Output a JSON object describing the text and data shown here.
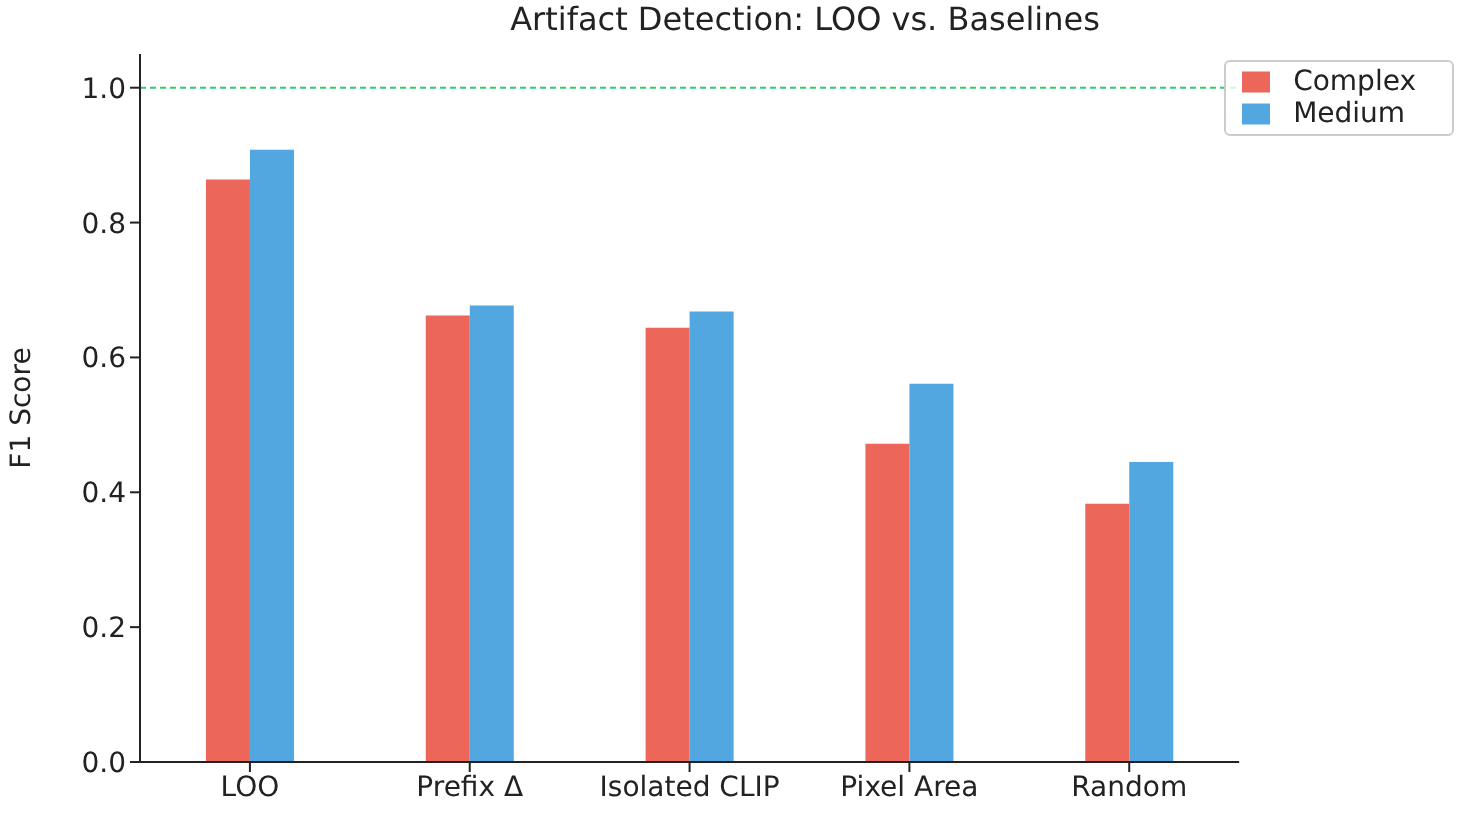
{
  "chart_data": {
    "type": "bar",
    "title": "Artifact Detection: LOO vs. Baselines",
    "ylabel": "F1 Score",
    "categories": [
      "LOO",
      "Prefix Δ",
      "Isolated CLIP",
      "Pixel Area",
      "Random"
    ],
    "series": [
      {
        "name": "Complex",
        "color": "#ec6759",
        "values": [
          0.864,
          0.662,
          0.644,
          0.472,
          0.383
        ]
      },
      {
        "name": "Medium",
        "color": "#52a7e0",
        "values": [
          0.908,
          0.677,
          0.668,
          0.561,
          0.445
        ]
      }
    ],
    "ylim": [
      0,
      1.05
    ],
    "yticks": [
      {
        "value": 0,
        "label": "0.0"
      },
      {
        "value": 0.2,
        "label": "0.2"
      },
      {
        "value": 0.4,
        "label": "0.4"
      },
      {
        "value": 0.6,
        "label": "0.6"
      },
      {
        "value": 0.8,
        "label": "0.8"
      },
      {
        "value": 1,
        "label": "1.0"
      }
    ],
    "ref_lines": [
      {
        "axis": "y",
        "value": 1,
        "color": "#2ecc71",
        "line_style": "dashed"
      }
    ],
    "grid": false,
    "legend": "top right"
  }
}
